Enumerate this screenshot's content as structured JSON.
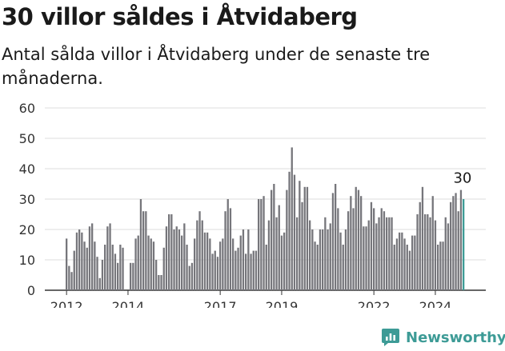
{
  "title": "30 villor såldes i Åtvidaberg",
  "subtitle": "Antal sålda villor i Åtvidaberg under de senaste tre månaderna.",
  "brand": {
    "name": "Newsworthy",
    "icon": "newsworthy-logo-icon",
    "color": "#3d9b96"
  },
  "chart_data": {
    "type": "bar",
    "title": "",
    "xlabel": "",
    "ylabel": "",
    "ylim": [
      0,
      60
    ],
    "yticks": [
      0,
      10,
      20,
      30,
      40,
      50,
      60
    ],
    "xtick_labels": [
      "2012",
      "2014",
      "2017",
      "2019",
      "2022",
      "2024"
    ],
    "grid": true,
    "bar_color": "#76767b",
    "highlight_color": "#3d9b96",
    "annotation": {
      "text": "30",
      "month": "2024-11"
    },
    "start_month": "2012-01",
    "series": [
      {
        "values": [
          17,
          8,
          6,
          13,
          19,
          20,
          19,
          16,
          14,
          21,
          22,
          16,
          11,
          4,
          10,
          15,
          21,
          22,
          15,
          12,
          9,
          15,
          14,
          0,
          0,
          9,
          9,
          17,
          18,
          30,
          26,
          26,
          18,
          17,
          16,
          10,
          5,
          5,
          14,
          21,
          25,
          25,
          20,
          21,
          20,
          18,
          22,
          15,
          8,
          9,
          17,
          23,
          26,
          23,
          19,
          19,
          17,
          12,
          13,
          11,
          16,
          17,
          26,
          30,
          27,
          17,
          13,
          14,
          18,
          20,
          12,
          20,
          12,
          13,
          13,
          30,
          30,
          31,
          15,
          23,
          33,
          35,
          24,
          28,
          18,
          19,
          33,
          39,
          47,
          38,
          24,
          36,
          29,
          34,
          34,
          23,
          20,
          16,
          15,
          20,
          20,
          24,
          20,
          22,
          32,
          35,
          27,
          19,
          15,
          20,
          26,
          31,
          27,
          34,
          33,
          31,
          21,
          21,
          23,
          29,
          27,
          22,
          24,
          27,
          26,
          24,
          24,
          24,
          15,
          17,
          19,
          19,
          17,
          15,
          13,
          18,
          18,
          25,
          29,
          34,
          25,
          25,
          24,
          31,
          23,
          15,
          16,
          16,
          24,
          22,
          29,
          31,
          32,
          26,
          33,
          30
        ]
      }
    ]
  }
}
